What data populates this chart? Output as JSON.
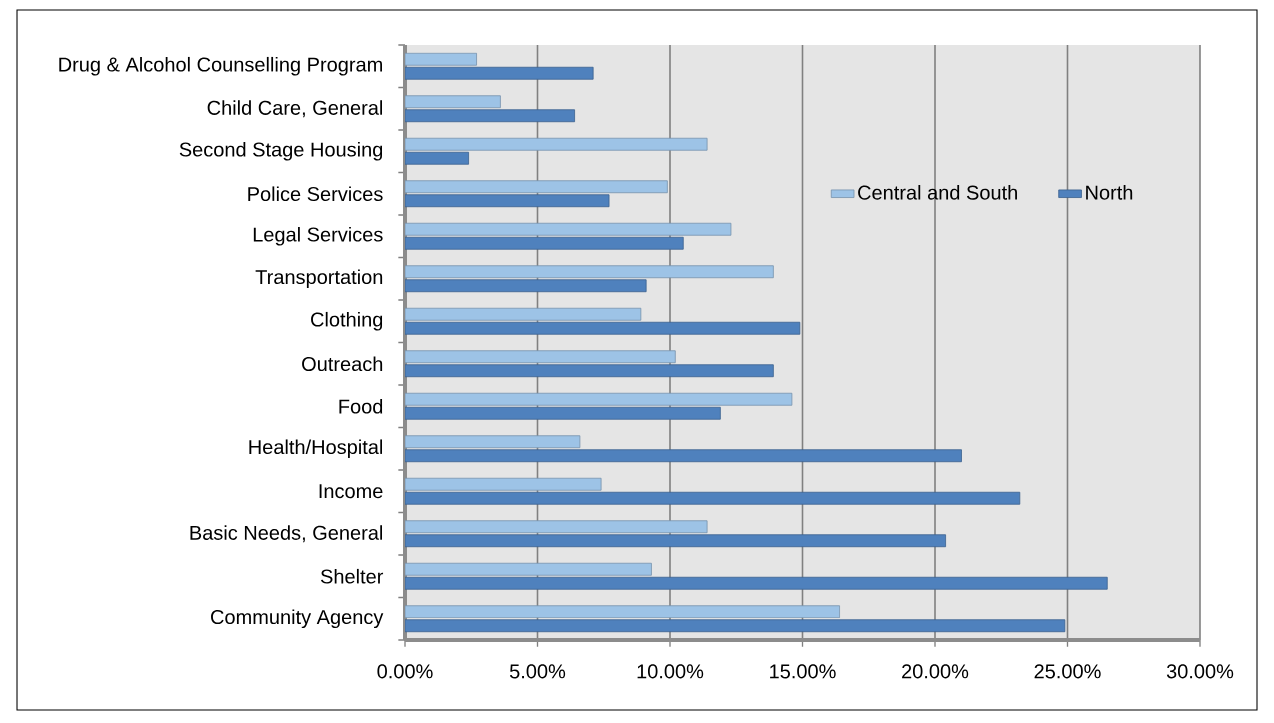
{
  "chart_data": {
    "type": "bar",
    "orientation": "horizontal",
    "categories": [
      "Drug & Alcohol Counselling Program",
      "Child Care, General",
      "Second Stage Housing",
      "Police Services",
      "Legal Services",
      "Transportation",
      "Clothing",
      "Outreach",
      "Food",
      "Health/Hospital",
      "Income",
      "Basic Needs, General",
      "Shelter",
      "Community Agency"
    ],
    "series": [
      {
        "name": "Central and South",
        "color": "#9dc3e6",
        "values": [
          2.7,
          3.6,
          11.4,
          9.9,
          12.3,
          13.9,
          8.9,
          10.2,
          14.6,
          6.6,
          7.4,
          11.4,
          9.3,
          16.4
        ]
      },
      {
        "name": "North",
        "color": "#4f81bd",
        "values": [
          7.1,
          6.4,
          2.4,
          7.7,
          10.5,
          9.1,
          14.9,
          13.9,
          11.9,
          21.0,
          23.2,
          20.4,
          26.5,
          24.9
        ]
      }
    ],
    "xlim": [
      0,
      30
    ],
    "xticks": [
      {
        "value": 0,
        "label": "0.00%"
      },
      {
        "value": 5,
        "label": "5.00%"
      },
      {
        "value": 10,
        "label": "10.00%"
      },
      {
        "value": 15,
        "label": "15.00%"
      },
      {
        "value": 20,
        "label": "20.00%"
      },
      {
        "value": 25,
        "label": "25.00%"
      },
      {
        "value": 30,
        "label": "30.00%"
      }
    ],
    "grid": "x",
    "legend": "top right"
  }
}
